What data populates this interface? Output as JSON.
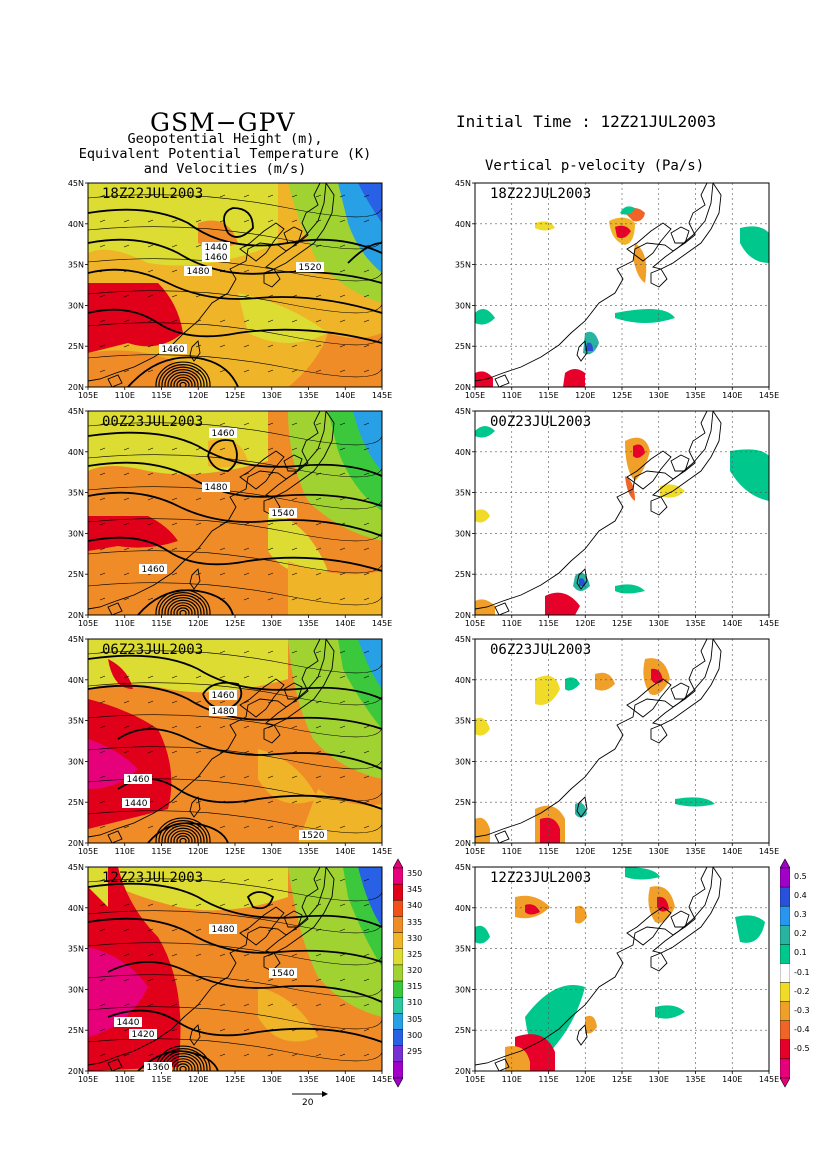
{
  "header": {
    "title": "GSM−GPV",
    "subtitle_lines": [
      "Geopotential Height (m),",
      "Equivalent Potential Temperature (K)",
      "and Velocities (m/s)"
    ],
    "initial_time": "Initial Time : 12Z21JUL2003",
    "right_title": "Vertical p-velocity (Pa/s)"
  },
  "axes": {
    "lat_labels": [
      "45N",
      "40N",
      "35N",
      "30N",
      "25N",
      "20N"
    ],
    "lon_labels_left": [
      "105E",
      "110E",
      "115E",
      "120E",
      "125E",
      "130E",
      "135E",
      "140E",
      "145E"
    ],
    "lon_labels_right": [
      "105E",
      "110E",
      "115E",
      "120E",
      "125E",
      "130E",
      "135E",
      "140E",
      "145E"
    ]
  },
  "frames": [
    {
      "time": "18Z22JUL2003",
      "contour_labels": [
        "1440",
        "1460",
        "1480",
        "1520",
        "1460"
      ]
    },
    {
      "time": "00Z23JUL2003",
      "contour_labels": [
        "1460",
        "1480",
        "1540",
        "1460"
      ]
    },
    {
      "time": "06Z23JUL2003",
      "contour_labels": [
        "1460",
        "1480",
        "1460",
        "1440",
        "1520"
      ]
    },
    {
      "time": "12Z23JUL2003",
      "contour_labels": [
        "1480",
        "1540",
        "1440",
        "1420",
        "1360"
      ]
    }
  ],
  "colorbar_left": {
    "labels": [
      "350",
      "345",
      "340",
      "335",
      "330",
      "325",
      "320",
      "315",
      "310",
      "305",
      "300",
      "295"
    ],
    "colors": [
      "#e6007a",
      "#e0001a",
      "#f0501a",
      "#f08c28",
      "#f0b428",
      "#dcdc32",
      "#a0d232",
      "#3cc83c",
      "#2cc8a0",
      "#28a0e6",
      "#2860e6",
      "#7830d2",
      "#a000c8"
    ]
  },
  "colorbar_right": {
    "labels": [
      "0.5",
      "0.4",
      "0.3",
      "0.2",
      "0.1",
      "-0.1",
      "-0.2",
      "-0.3",
      "-0.4",
      "-0.5"
    ],
    "colors": [
      "#a000c8",
      "#2850dc",
      "#2896f0",
      "#28b4a0",
      "#00c88c",
      "#ffffff",
      "#f0dc28",
      "#f0a028",
      "#f06428",
      "#e6002a",
      "#e6007a"
    ]
  },
  "vector_reference": "20"
}
